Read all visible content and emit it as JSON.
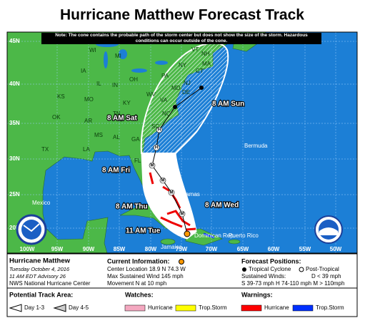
{
  "title": "Hurricane Matthew Forecast Track",
  "note": "Note: The cone contains the probable path of the storm center but does not show the size of the storm. Hazardous conditions can occur outside of the cone.",
  "map": {
    "lat_labels": [
      "45N",
      "40N",
      "35N",
      "30N",
      "25N",
      "20N"
    ],
    "lon_labels": [
      "100W",
      "95W",
      "90W",
      "85W",
      "80W",
      "75W",
      "70W",
      "65W",
      "60W",
      "55W",
      "50W"
    ],
    "states": [
      "WI",
      "MI",
      "NY",
      "VT",
      "NH",
      "MA",
      "CT",
      "IA",
      "IL",
      "IN",
      "OH",
      "PA",
      "NJ",
      "DE",
      "MD",
      "WV",
      "VA",
      "MO",
      "KY",
      "KS",
      "OK",
      "AR",
      "TN",
      "NC",
      "SC",
      "MS",
      "AL",
      "GA",
      "LA",
      "TX",
      "FL"
    ],
    "places": [
      "Mexico",
      "Bermuda",
      "Bahamas",
      "Jamaica",
      "Puerto Rico",
      "Dominican Rep."
    ],
    "forecast_labels": [
      "8 AM Sun",
      "8 AM Sat",
      "8 AM Fri",
      "8 AM Thu",
      "8 AM Wed",
      "11 AM Tue"
    ],
    "markers": [
      "M",
      "H"
    ]
  },
  "info": {
    "storm": "Hurricane Matthew",
    "date": "Tuesday  October 4, 2016",
    "advisory": "11 AM EDT Advisory 26",
    "agency": "NWS National Hurricane Center"
  },
  "current": {
    "heading": "Current Information:",
    "location": "Center Location 18.9 N  74.3 W",
    "wind": "Max Sustained Wind  145 mph",
    "movement": "Movement N at  10 mph"
  },
  "forecast_positions": {
    "heading": "Forecast Positions:",
    "types": [
      "Tropical Cyclone",
      "Post-Tropical"
    ],
    "winds_heading": "Sustained Winds:",
    "wind_classes": [
      "D < 39 mph",
      "S 39-73 mph  H 74-110 mph  M > 110mph"
    ]
  },
  "legend": {
    "track_area": {
      "heading": "Potential Track Area:",
      "items": [
        "Day 1-3",
        "Day 4-5"
      ]
    },
    "watches": {
      "heading": "Watches:",
      "items": [
        "Hurricane",
        "Trop.Storm"
      ]
    },
    "warnings": {
      "heading": "Warnings:",
      "items": [
        "Hurricane",
        "Trop.Storm"
      ]
    }
  }
}
